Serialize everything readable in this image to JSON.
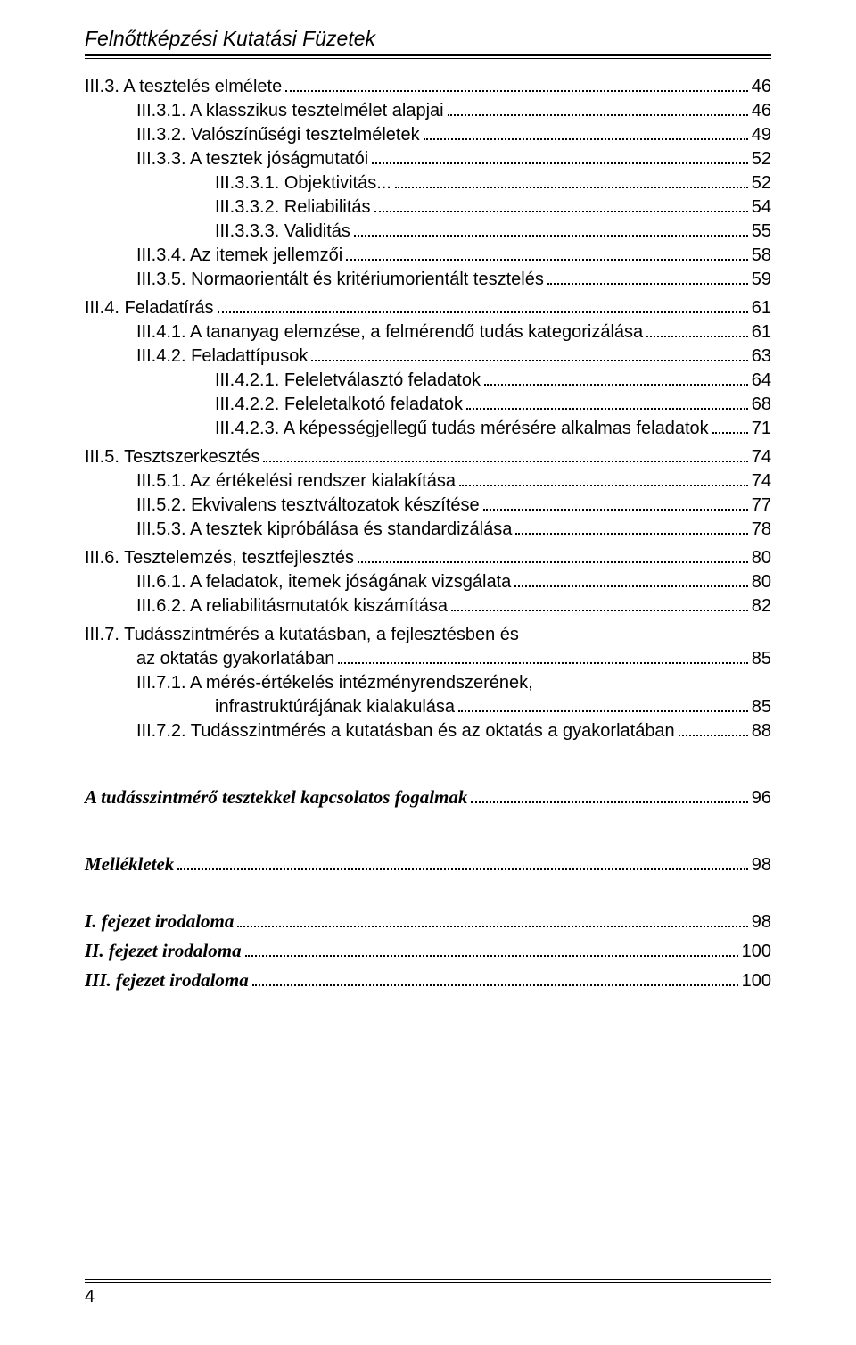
{
  "running_head": "Felnőttképzési Kutatási Füzetek",
  "page_number": "4",
  "toc": [
    {
      "indent": 1,
      "label": "III.3. A tesztelés elmélete",
      "page": "46",
      "block": true
    },
    {
      "indent": 2,
      "label": "III.3.1.  A klasszikus tesztelmélet alapjai",
      "page": "46"
    },
    {
      "indent": 2,
      "label": "III.3.2.  Valószínűségi tesztelméletek",
      "page": "49"
    },
    {
      "indent": 2,
      "label": "III.3.3.  A tesztek jóságmutatói",
      "page": "52"
    },
    {
      "indent": 3,
      "label": "III.3.3.1.  Objektivitás... ",
      "page": "52"
    },
    {
      "indent": 3,
      "label": "III.3.3.2.  Reliabilitás",
      "page": "54"
    },
    {
      "indent": 3,
      "label": "III.3.3.3.  Validitás",
      "page": "55"
    },
    {
      "indent": 2,
      "label": "III.3.4.  Az itemek jellemzői",
      "page": "58"
    },
    {
      "indent": 2,
      "label": "III.3.5.  Normaorientált és kritériumorientált tesztelés",
      "page": "59"
    },
    {
      "indent": 1,
      "label": "III.4.   Feladatírás",
      "page": "61",
      "block": true
    },
    {
      "indent": 2,
      "label": "III.4.1.  A tananyag elemzése, a felmérendő tudás kategorizálása",
      "page": "61"
    },
    {
      "indent": 2,
      "label": "III.4.2.  Feladattípusok",
      "page": "63"
    },
    {
      "indent": 3,
      "label": "III.4.2.1.  Feleletválasztó feladatok",
      "page": "64"
    },
    {
      "indent": 3,
      "label": "III.4.2.2.  Feleletalkotó feladatok",
      "page": "68"
    },
    {
      "indent": 3,
      "label": "III.4.2.3.  A képességjellegű tudás mérésére alkalmas feladatok",
      "page": "71"
    },
    {
      "indent": 1,
      "label": "III.5.   Tesztszerkesztés",
      "page": "74",
      "block": true
    },
    {
      "indent": 2,
      "label": "III.5.1.  Az értékelési rendszer kialakítása",
      "page": "74"
    },
    {
      "indent": 2,
      "label": "III.5.2.  Ekvivalens tesztváltozatok készítése",
      "page": "77"
    },
    {
      "indent": 2,
      "label": "III.5.3.  A tesztek kipróbálása és standardizálása",
      "page": "78"
    },
    {
      "indent": 1,
      "label": "III.6. Tesztelemzés, tesztfejlesztés",
      "page": "80",
      "block": true
    },
    {
      "indent": 2,
      "label": "III.6.1.  A feladatok, itemek jóságának vizsgálata",
      "page": "80"
    },
    {
      "indent": 2,
      "label": "III.6.2.  A reliabilitásmutatók kiszámítása",
      "page": "82"
    },
    {
      "indent": 1,
      "label": "III.7. Tudásszintmérés a kutatásban, a fejlesztésben és",
      "nobreakpage": true,
      "block": true
    },
    {
      "indent": 1,
      "cont": true,
      "label": "az oktatás gyakorlatában",
      "page": "85"
    },
    {
      "indent": 2,
      "label": "III.7.1.  A mérés-értékelés intézményrendszerének,",
      "nobreakpage": true
    },
    {
      "indent": 2,
      "cont": true,
      "label": "infrastruktúrájának kialakulása",
      "page": "85"
    },
    {
      "indent": 2,
      "label": "III.7.2.  Tudásszintmérés a kutatásban és az oktatás a gyakorlatában",
      "page": "88"
    }
  ],
  "sections": [
    {
      "label": "A tudásszintmérő tesztekkel kapcsolatos fogalmak",
      "page": "96",
      "gap": "lg"
    },
    {
      "label": "Mellékletek",
      "page": "98",
      "gap": "lg"
    },
    {
      "label": "I. fejezet irodaloma",
      "page": "98",
      "gap": "md"
    },
    {
      "label": "II. fejezet irodaloma",
      "page": "100"
    },
    {
      "label": "III. fejezet irodaloma",
      "page": "100"
    }
  ]
}
